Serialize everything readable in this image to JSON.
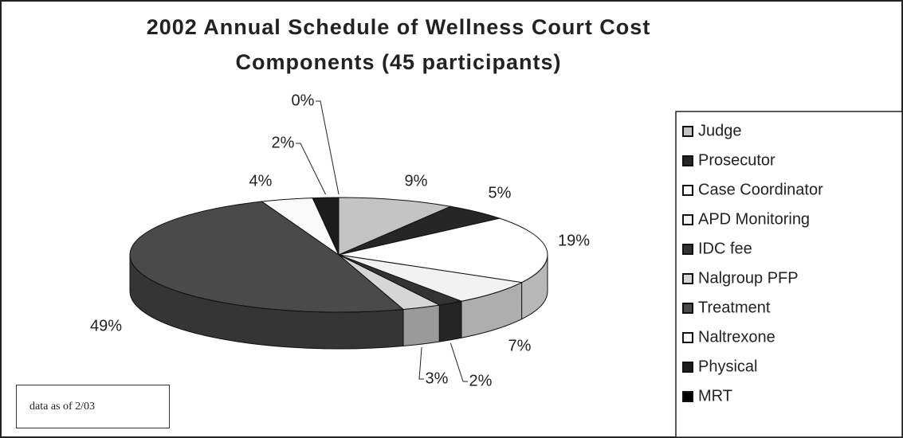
{
  "chart_data": {
    "type": "pie",
    "title": "2002 Annual Schedule of Wellness Court Cost Components (45 participants)",
    "categories": [
      "Judge",
      "Prosecutor",
      "Case Coordinator",
      "APD Monitoring",
      "IDC fee",
      "Nalgroup PFP",
      "Treatment",
      "Naltrexone",
      "Physical",
      "MRT"
    ],
    "values": [
      9,
      5,
      19,
      7,
      2,
      3,
      49,
      4,
      2,
      0
    ],
    "value_labels": [
      "9%",
      "5%",
      "19%",
      "7%",
      "2%",
      "3%",
      "49%",
      "4%",
      "2%",
      "0%"
    ],
    "colors": [
      "#c4c4c4",
      "#262626",
      "#ffffff",
      "#f2f2f2",
      "#333333",
      "#d6d6d6",
      "#4a4a4a",
      "#fafafa",
      "#1c1c1c",
      "#000000"
    ],
    "annotation": "data as of 2/03"
  }
}
